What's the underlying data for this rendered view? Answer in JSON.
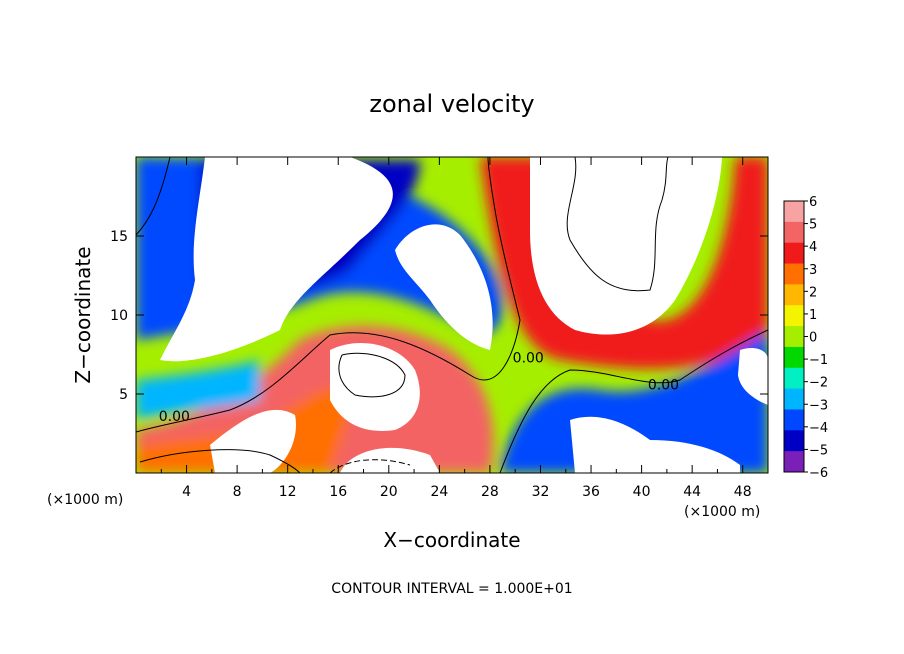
{
  "chart_data": {
    "type": "heatmap",
    "title": "zonal velocity",
    "xlabel": "X−coordinate",
    "ylabel": "Z−coordinate",
    "x_unit_left": "(×1000 m)",
    "x_unit_right": "(×1000 m)",
    "xlim": [
      0,
      50
    ],
    "ylim": [
      0,
      20
    ],
    "xticks": [
      4,
      8,
      12,
      16,
      20,
      24,
      28,
      32,
      36,
      40,
      44,
      48
    ],
    "yticks": [
      5,
      10,
      15
    ],
    "colorbar": {
      "levels": [
        6,
        5,
        4,
        3,
        2,
        1,
        0,
        -1,
        -2,
        -3,
        -4,
        -5,
        -6
      ],
      "labels": [
        "6",
        "5",
        "4",
        "3",
        "2",
        "1",
        "0",
        "−1",
        "−2",
        "−3",
        "−4",
        "−5",
        "−6"
      ],
      "colors": [
        "#f7a3a3",
        "#f36464",
        "#f01a1a",
        "#ff7000",
        "#ffb700",
        "#f4f400",
        "#a6ee00",
        "#00d800",
        "#00f0c4",
        "#00b5ff",
        "#0048ff",
        "#0000c4",
        "#7a1fb8"
      ]
    },
    "contour_labels": [
      {
        "text": "0.00",
        "x": 1.8,
        "y": 3.3
      },
      {
        "text": "0.00",
        "x": 29.8,
        "y": 7.0
      },
      {
        "text": "0.00",
        "x": 40.5,
        "y": 5.3
      }
    ],
    "footnote": "CONTOUR INTERVAL = 1.000E+01"
  }
}
